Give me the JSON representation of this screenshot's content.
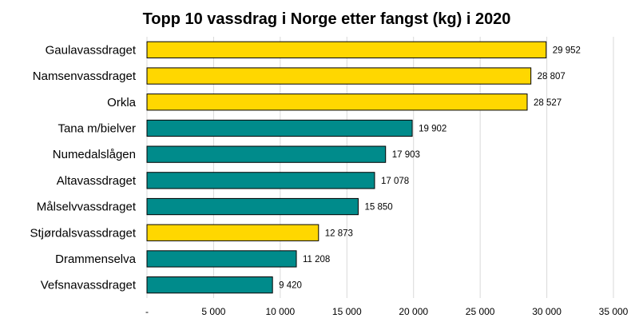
{
  "chart_data": {
    "type": "bar",
    "orientation": "horizontal",
    "title": "Topp 10 vassdrag i Norge etter fangst (kg) i 2020",
    "categories": [
      "Gaulavassdraget",
      "Namsenvassdraget",
      "Orkla",
      "Tana m/bielver",
      "Numedalslågen",
      "Altavassdraget",
      "Målselvvassdraget",
      "Stjørdalsvassdraget",
      "Drammenselva",
      "Vefsnavassdraget"
    ],
    "values": [
      29952,
      28807,
      28527,
      19902,
      17903,
      17078,
      15850,
      12873,
      11208,
      9420
    ],
    "value_labels": [
      "29 952",
      "28 807",
      "28 527",
      "19 902",
      "17 903",
      "17 078",
      "15 850",
      "12 873",
      "11 208",
      "9 420"
    ],
    "bar_colors": [
      "#ffd700",
      "#ffd700",
      "#ffd700",
      "#008b8b",
      "#008b8b",
      "#008b8b",
      "#008b8b",
      "#ffd700",
      "#008b8b",
      "#008b8b"
    ],
    "xlim": [
      0,
      35000
    ],
    "x_ticks": [
      0,
      5000,
      10000,
      15000,
      20000,
      25000,
      30000,
      35000
    ],
    "x_tick_labels": [
      "-",
      "5 000",
      "10 000",
      "15 000",
      "20 000",
      "25 000",
      "30 000",
      "35 000"
    ],
    "grid": "vertical",
    "legend": "none"
  }
}
